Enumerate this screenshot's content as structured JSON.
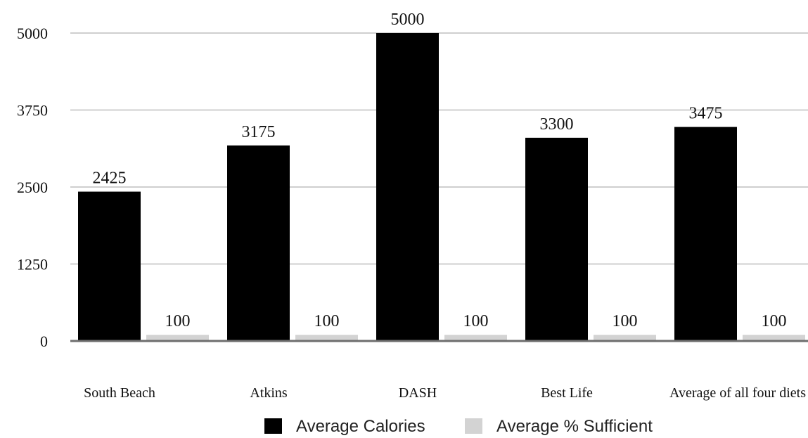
{
  "chart_data": {
    "type": "bar",
    "categories": [
      "South Beach",
      "Atkins",
      "DASH",
      "Best Life",
      "Average of all four diets"
    ],
    "series": [
      {
        "name": "Average Calories",
        "values": [
          2425,
          3175,
          5000,
          3300,
          3475
        ],
        "color": "#000000"
      },
      {
        "name": "Average % Sufficient",
        "values": [
          100,
          100,
          100,
          100,
          100
        ],
        "color": "#d3d3d3"
      }
    ],
    "yticks": [
      "0",
      "1250",
      "2500",
      "3750",
      "5000"
    ],
    "ylim": [
      0,
      5000
    ],
    "grid": true,
    "legend_position": "bottom",
    "title": "",
    "xlabel": "",
    "ylabel": ""
  }
}
